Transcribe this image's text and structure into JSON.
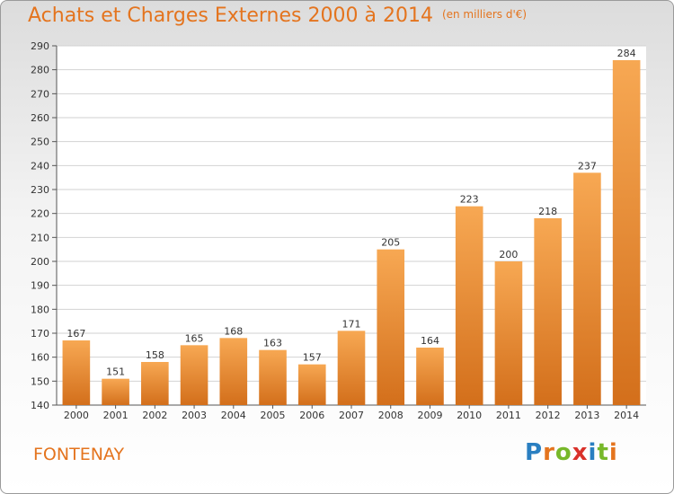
{
  "title": "Achats et Charges Externes 2000 à 2014",
  "subtitle": "(en milliers d'€)",
  "commune": "FONTENAY",
  "logo": "Proxiti",
  "colors": {
    "accent": "#e4741e",
    "bar_light": "#f6a651",
    "bar_dark": "#d3701c",
    "grid": "#cfcfcf"
  },
  "chart_data": {
    "type": "bar",
    "title": "Achats et Charges Externes 2000 à 2014",
    "subtitle": "(en milliers d'€)",
    "categories": [
      "2000",
      "2001",
      "2002",
      "2003",
      "2004",
      "2005",
      "2006",
      "2007",
      "2008",
      "2009",
      "2010",
      "2011",
      "2012",
      "2013",
      "2014"
    ],
    "values": [
      167,
      151,
      158,
      165,
      168,
      163,
      157,
      171,
      205,
      164,
      223,
      200,
      218,
      237,
      284
    ],
    "ylim": [
      140,
      290
    ],
    "yticks": [
      140,
      150,
      160,
      170,
      180,
      190,
      200,
      210,
      220,
      230,
      240,
      250,
      260,
      270,
      280,
      290
    ],
    "grid": true,
    "data_labels": true
  }
}
